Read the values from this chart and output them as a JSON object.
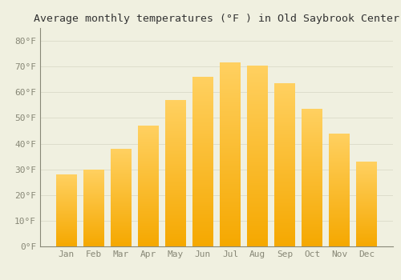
{
  "months": [
    "Jan",
    "Feb",
    "Mar",
    "Apr",
    "May",
    "Jun",
    "Jul",
    "Aug",
    "Sep",
    "Oct",
    "Nov",
    "Dec"
  ],
  "values": [
    28,
    30,
    38,
    47,
    57,
    66,
    71.5,
    70.5,
    63.5,
    53.5,
    44,
    33
  ],
  "title": "Average monthly temperatures (°F ) in Old Saybrook Center",
  "ylim": [
    0,
    85
  ],
  "ytick_step": 10,
  "background_color": "#F0F0E0",
  "grid_color": "#DDDDCC",
  "bar_color_bottom": "#F5A800",
  "bar_color_top": "#FFD060",
  "title_fontsize": 9.5,
  "tick_fontsize": 8,
  "tick_color": "#888877",
  "spine_color": "#888877",
  "bar_width": 0.75
}
